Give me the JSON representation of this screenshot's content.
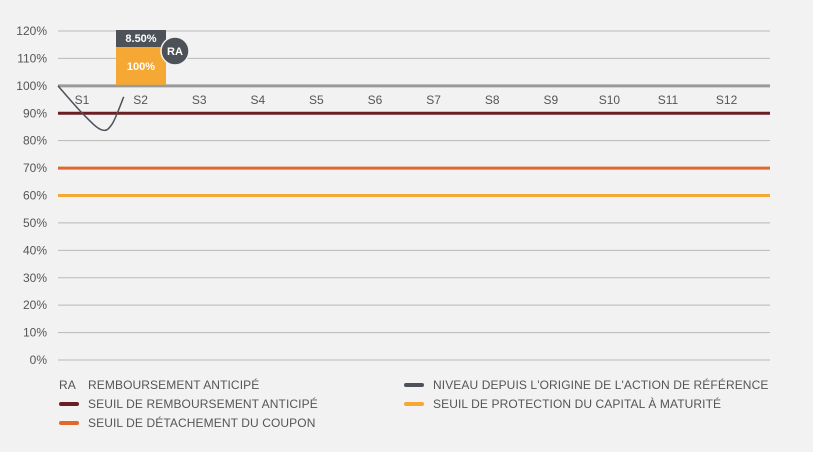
{
  "chart_data": {
    "type": "line",
    "title": "",
    "xlabel": "",
    "ylabel": "",
    "categories": [
      "S1",
      "S2",
      "S3",
      "S4",
      "S5",
      "S6",
      "S7",
      "S8",
      "S9",
      "S10",
      "S11",
      "S12"
    ],
    "ylim": [
      0,
      120
    ],
    "y_ticks": [
      "0%",
      "10%",
      "20%",
      "30%",
      "40%",
      "50%",
      "60%",
      "70%",
      "80%",
      "90%",
      "100%",
      "110%",
      "120%"
    ],
    "y_tick_values": [
      0,
      10,
      20,
      30,
      40,
      50,
      60,
      70,
      80,
      90,
      100,
      110,
      120
    ],
    "grid": true,
    "thresholds": [
      {
        "name": "SEUIL DE REMBOURSEMENT ANTICIPÉ",
        "value": 90,
        "color": "#6b1f24"
      },
      {
        "name": "SEUIL DE DÉTACHEMENT DU COUPON",
        "value": 70,
        "color": "#e2672b"
      },
      {
        "name": "SEUIL DE PROTECTION DU CAPITAL À MATURITÉ",
        "value": 60,
        "color": "#f5a833"
      }
    ],
    "reference_level": {
      "value": 100,
      "color": "#9a9a9a"
    },
    "series": [
      {
        "name": "NIVEAU DEPUIS L'ORIGINE DE L'ACTION DE RÉFÉRENCE",
        "color": "#4d5259",
        "x": [
          0,
          0.45,
          0.8,
          1.0,
          1.2
        ],
        "values": [
          100,
          90,
          84,
          86,
          96
        ]
      }
    ],
    "early_redemption": {
      "period": "S2",
      "coupon_label": "8.50%",
      "coupon_color": "#4d5259",
      "capital_label": "100%",
      "capital_color": "#f5a833",
      "badge_label": "RA",
      "badge_color": "#4d5259"
    },
    "legend": {
      "placement": "bottom",
      "items": [
        {
          "key": "ra",
          "abbr": "RA",
          "label": "REMBOURSEMENT ANTICIPÉ"
        },
        {
          "key": "level",
          "label": "NIVEAU DEPUIS L'ORIGINE DE L'ACTION DE RÉFÉRENCE",
          "color": "#4d5259"
        },
        {
          "key": "early",
          "label": "SEUIL DE REMBOURSEMENT ANTICIPÉ",
          "color": "#6b1f24"
        },
        {
          "key": "capital",
          "label": "SEUIL DE PROTECTION DU CAPITAL À MATURITÉ",
          "color": "#f5a833"
        },
        {
          "key": "coupon",
          "label": "SEUIL DE DÉTACHEMENT DU COUPON",
          "color": "#e2672b"
        }
      ]
    }
  }
}
